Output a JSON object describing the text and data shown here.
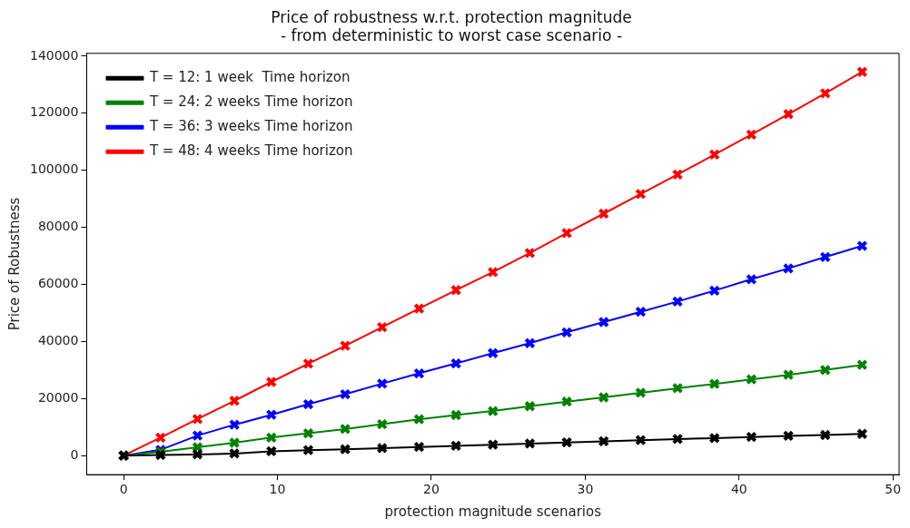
{
  "chart_data": {
    "type": "line",
    "title": "Price of robustness w.r.t. protection magnitude\n- from deterministic to worst case scenario -",
    "xlabel": "protection magnitude scenarios",
    "ylabel": "Price of Robustness",
    "x": [
      0,
      2.4,
      4.8,
      7.2,
      9.6,
      12,
      14.4,
      16.8,
      19.2,
      21.6,
      24,
      26.4,
      28.8,
      31.2,
      33.6,
      36,
      38.4,
      40.8,
      43.2,
      45.6,
      48
    ],
    "series": [
      {
        "name": "T = 12: 1 week  Time horizon",
        "color": "#000000",
        "values": [
          0,
          200,
          400,
          700,
          1500,
          1900,
          2200,
          2600,
          3000,
          3400,
          3800,
          4200,
          4600,
          5000,
          5400,
          5800,
          6100,
          6500,
          6900,
          7200,
          7600
        ]
      },
      {
        "name": "T = 24: 2 weeks Time horizon",
        "color": "#008000",
        "values": [
          0,
          1300,
          2900,
          4500,
          6300,
          7800,
          9300,
          11000,
          12700,
          14200,
          15600,
          17300,
          18900,
          20400,
          22000,
          23600,
          25100,
          26700,
          28300,
          30000,
          31800
        ]
      },
      {
        "name": "T = 36: 3 weeks Time horizon",
        "color": "#0000ff",
        "values": [
          0,
          2000,
          7000,
          10800,
          14300,
          18000,
          21500,
          25200,
          28800,
          32300,
          35900,
          39400,
          43200,
          46800,
          50400,
          54000,
          57800,
          61800,
          65600,
          69600,
          73500
        ]
      },
      {
        "name": "T = 48: 4 weeks Time horizon",
        "color": "#ff0000",
        "values": [
          0,
          6300,
          12800,
          19200,
          25800,
          32200,
          38500,
          45000,
          51500,
          58000,
          64300,
          71000,
          78000,
          84800,
          91700,
          98500,
          105500,
          112500,
          119700,
          127000,
          134500
        ]
      }
    ],
    "xlim": [
      -2.4,
      50.4
    ],
    "xticks": [
      0,
      10,
      20,
      30,
      40,
      50
    ],
    "ylim": [
      -6700,
      141000
    ],
    "yticks": [
      0,
      20000,
      40000,
      60000,
      80000,
      100000,
      120000,
      140000
    ],
    "grid": false,
    "legend": "top left",
    "marker": "cross",
    "line_style": "solid"
  }
}
